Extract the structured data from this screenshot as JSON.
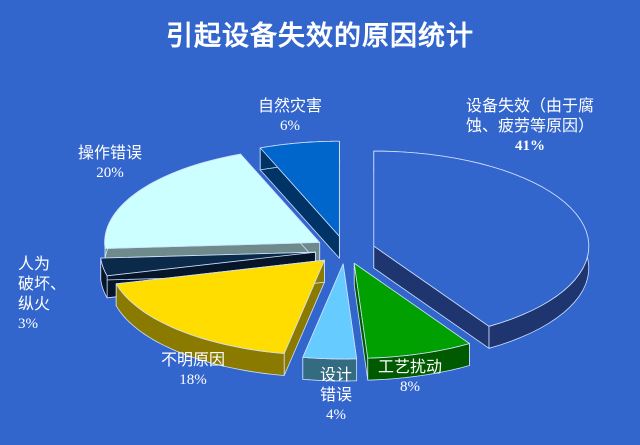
{
  "chart_data": {
    "type": "pie",
    "style": "3d-exploded",
    "title": "引起设备失效的原因统计",
    "slices": [
      {
        "label": "设备失效（由于腐蚀、疲劳等原因）",
        "label_line1": "设备失效（由于腐",
        "label_line2": "蚀、疲劳等原因）",
        "value": 41,
        "pct": "41%",
        "color": "#3366cc",
        "side": "#1f3570"
      },
      {
        "label": "工艺扰动",
        "value": 8,
        "pct": "8%",
        "color": "#00a000",
        "side": "#005a00"
      },
      {
        "label": "设计错误",
        "label_line1": "设计",
        "label_line2": "错误",
        "value": 4,
        "pct": "4%",
        "color": "#66ccff",
        "side": "#336b80"
      },
      {
        "label": "不明原因",
        "value": 18,
        "pct": "18%",
        "color": "#ffdd00",
        "side": "#8a7a00"
      },
      {
        "label": "人为破坏、纵火",
        "label_line1": "人为",
        "label_line2": "破坏、",
        "label_line3": "纵火",
        "value": 3,
        "pct": "3%",
        "color": "#0b2a4a",
        "side": "#061628"
      },
      {
        "label": "操作错误",
        "value": 20,
        "pct": "20%",
        "color": "#ccffff",
        "side": "#6e8a8a"
      },
      {
        "label": "自然灾害",
        "value": 6,
        "pct": "6%",
        "color": "#0066cc",
        "side": "#003366"
      }
    ]
  }
}
